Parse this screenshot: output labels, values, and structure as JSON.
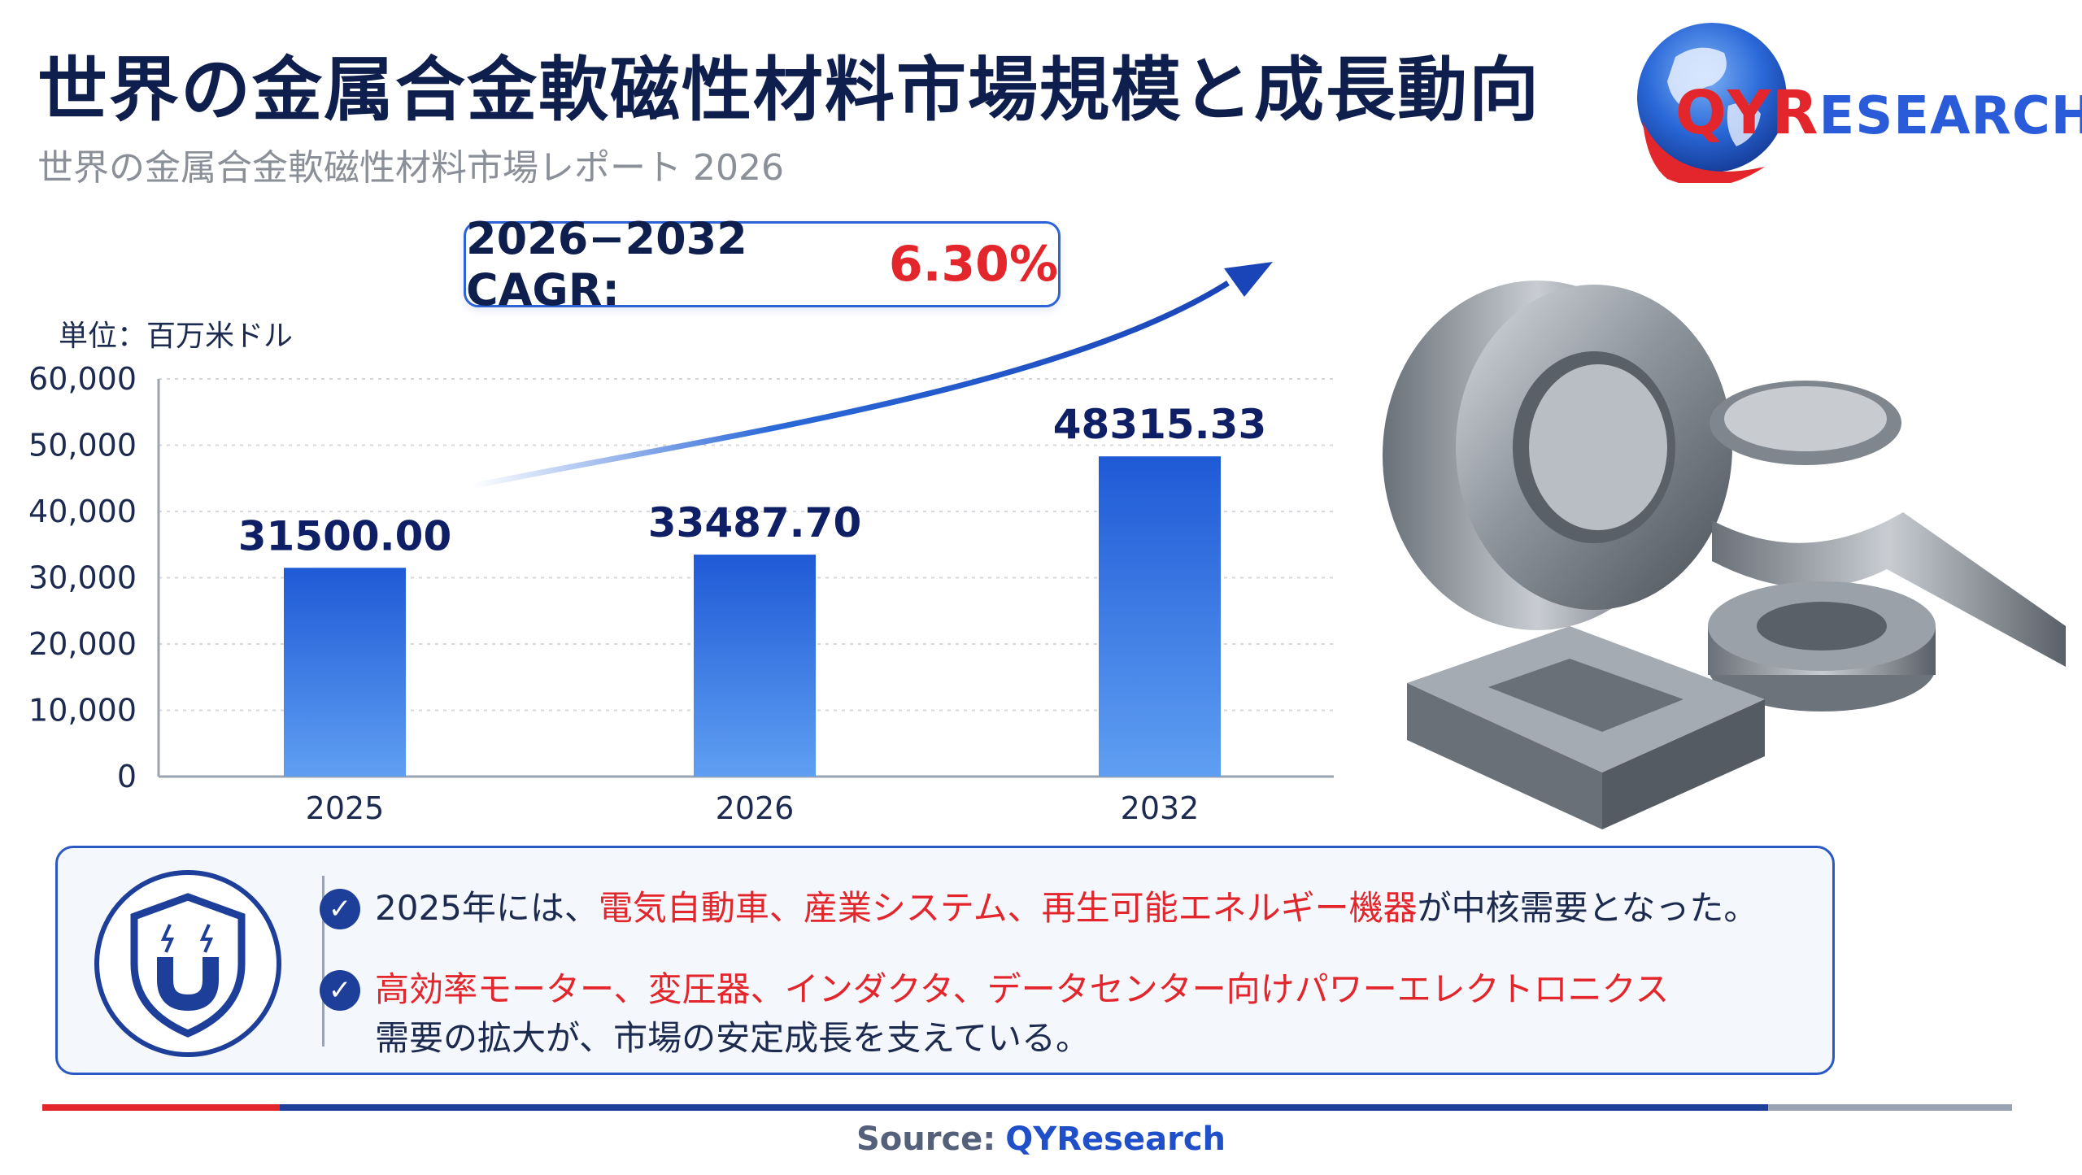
{
  "header": {
    "title": "世界の金属合金軟磁性材料市場規模と成長動向",
    "subtitle": "世界の金属合金軟磁性材料市場レポート 2026"
  },
  "logo": {
    "text_r": "QYR",
    "text_rest": "ESEARCH"
  },
  "cagr": {
    "label": "2026−2032 CAGR:",
    "value": "6.30%"
  },
  "chart_data": {
    "type": "bar",
    "unit_label": "単位：百万米ドル",
    "categories": [
      "2025",
      "2026",
      "2032"
    ],
    "values": [
      31500.0,
      33487.7,
      48315.33
    ],
    "value_labels": [
      "31500.00",
      "33487.70",
      "48315.33"
    ],
    "yticks": [
      "60,000",
      "50,000",
      "40,000",
      "30,000",
      "20,000",
      "10,000",
      "0"
    ],
    "ylim": [
      0,
      60000
    ],
    "grid": true,
    "colors": {
      "bar_top": "#1f5ad6",
      "bar_bottom": "#5f9ff2",
      "label": "#0f1f66"
    }
  },
  "features": {
    "bullet1": {
      "prefix": "2025年には、",
      "highlight": "電気自動車、産業システム、再生可能エネルギー機器",
      "suffix": "が中核需要となった。"
    },
    "bullet2": {
      "highlight": "高効率モーター、変圧器、インダクタ、データセンター向けパワーエレクトロニクス",
      "line2": "需要の拡大が、市場の安定成長を支えている。"
    }
  },
  "footer": {
    "source_label": "Source:",
    "source_value": "QYResearch"
  },
  "colors": {
    "accent_red": "#e3262b",
    "accent_blue": "#1d3f9a",
    "brand_blue": "#2a5bd8"
  }
}
